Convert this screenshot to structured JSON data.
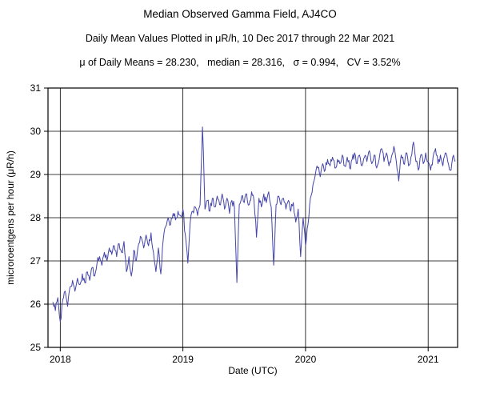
{
  "page": {
    "title": "Median Observed Gamma Field, AJ4CO",
    "subtitle": "Daily Mean Values Plotted in μR/h, 10 Dec 2017 through 22 Mar 2021",
    "stats_line": "μ of Daily Means = 28.230,   median = 28.316,   σ = 0.994,   CV = 3.52%"
  },
  "chart_data": {
    "type": "line",
    "title": "Median Observed Gamma Field, AJ4CO",
    "subtitle": "Daily Mean Values Plotted in μR/h, 10 Dec 2017 through 22 Mar 2021",
    "xlabel": "Date (UTC)",
    "ylabel": "microroentgens per hour (μR/h)",
    "xlim": [
      2017.9,
      2021.24
    ],
    "ylim": [
      25,
      31
    ],
    "x_ticks": [
      2018,
      2019,
      2020,
      2021
    ],
    "y_ticks": [
      25,
      26,
      27,
      28,
      29,
      30,
      31
    ],
    "grid": true,
    "legend": "none",
    "line_color": "#4444aa",
    "grid_color": "#000000",
    "frame_color": "#000000",
    "text_color": "#000000",
    "stats": {
      "mean_of_daily_means": 28.23,
      "median": 28.316,
      "sigma": 0.994,
      "cv_percent": 3.52
    },
    "noise_subdivision": {
      "midpoints_per_segment": 2,
      "amplitude": 0.1
    },
    "series": [
      {
        "name": "daily-mean-gamma",
        "points": [
          [
            2017.94,
            26.05
          ],
          [
            2017.96,
            25.85
          ],
          [
            2017.98,
            26.15
          ],
          [
            2018.0,
            25.6
          ],
          [
            2018.02,
            26.1
          ],
          [
            2018.04,
            26.3
          ],
          [
            2018.06,
            25.95
          ],
          [
            2018.08,
            26.4
          ],
          [
            2018.1,
            26.55
          ],
          [
            2018.12,
            26.3
          ],
          [
            2018.14,
            26.6
          ],
          [
            2018.16,
            26.45
          ],
          [
            2018.18,
            26.7
          ],
          [
            2018.2,
            26.5
          ],
          [
            2018.22,
            26.75
          ],
          [
            2018.24,
            26.55
          ],
          [
            2018.26,
            26.85
          ],
          [
            2018.28,
            26.65
          ],
          [
            2018.3,
            26.95
          ],
          [
            2018.32,
            27.1
          ],
          [
            2018.34,
            26.9
          ],
          [
            2018.36,
            27.2
          ],
          [
            2018.38,
            27.0
          ],
          [
            2018.4,
            27.3
          ],
          [
            2018.42,
            27.15
          ],
          [
            2018.44,
            27.35
          ],
          [
            2018.46,
            27.1
          ],
          [
            2018.48,
            27.4
          ],
          [
            2018.5,
            27.2
          ],
          [
            2018.52,
            27.45
          ],
          [
            2018.54,
            26.75
          ],
          [
            2018.56,
            27.1
          ],
          [
            2018.58,
            26.65
          ],
          [
            2018.6,
            27.25
          ],
          [
            2018.62,
            27.0
          ],
          [
            2018.64,
            27.4
          ],
          [
            2018.66,
            27.55
          ],
          [
            2018.68,
            27.3
          ],
          [
            2018.7,
            27.6
          ],
          [
            2018.72,
            27.35
          ],
          [
            2018.74,
            27.65
          ],
          [
            2018.76,
            27.2
          ],
          [
            2018.78,
            26.75
          ],
          [
            2018.8,
            27.3
          ],
          [
            2018.82,
            26.7
          ],
          [
            2018.84,
            27.5
          ],
          [
            2018.86,
            27.8
          ],
          [
            2018.88,
            28.0
          ],
          [
            2018.9,
            27.85
          ],
          [
            2018.92,
            28.1
          ],
          [
            2018.94,
            27.95
          ],
          [
            2018.96,
            28.15
          ],
          [
            2018.98,
            28.05
          ],
          [
            2019.0,
            28.2
          ],
          [
            2019.02,
            27.6
          ],
          [
            2019.04,
            26.95
          ],
          [
            2019.06,
            27.9
          ],
          [
            2019.08,
            28.15
          ],
          [
            2019.1,
            28.25
          ],
          [
            2019.12,
            28.05
          ],
          [
            2019.14,
            28.3
          ],
          [
            2019.16,
            30.1
          ],
          [
            2019.18,
            28.2
          ],
          [
            2019.2,
            28.4
          ],
          [
            2019.22,
            28.15
          ],
          [
            2019.24,
            28.45
          ],
          [
            2019.26,
            28.25
          ],
          [
            2019.28,
            28.5
          ],
          [
            2019.3,
            28.3
          ],
          [
            2019.32,
            28.55
          ],
          [
            2019.34,
            28.2
          ],
          [
            2019.36,
            28.45
          ],
          [
            2019.38,
            28.1
          ],
          [
            2019.4,
            28.4
          ],
          [
            2019.42,
            28.25
          ],
          [
            2019.44,
            26.5
          ],
          [
            2019.46,
            28.3
          ],
          [
            2019.48,
            28.5
          ],
          [
            2019.5,
            28.35
          ],
          [
            2019.52,
            28.55
          ],
          [
            2019.54,
            28.3
          ],
          [
            2019.56,
            28.6
          ],
          [
            2019.58,
            28.4
          ],
          [
            2019.6,
            27.55
          ],
          [
            2019.62,
            28.45
          ],
          [
            2019.64,
            28.25
          ],
          [
            2019.66,
            28.55
          ],
          [
            2019.68,
            28.35
          ],
          [
            2019.7,
            28.6
          ],
          [
            2019.72,
            28.25
          ],
          [
            2019.74,
            26.9
          ],
          [
            2019.76,
            28.3
          ],
          [
            2019.78,
            28.5
          ],
          [
            2019.8,
            28.3
          ],
          [
            2019.82,
            28.45
          ],
          [
            2019.84,
            28.2
          ],
          [
            2019.86,
            28.4
          ],
          [
            2019.88,
            28.15
          ],
          [
            2019.9,
            28.35
          ],
          [
            2019.92,
            27.9
          ],
          [
            2019.94,
            28.2
          ],
          [
            2019.96,
            27.1
          ],
          [
            2019.98,
            28.0
          ],
          [
            2020.0,
            27.35
          ],
          [
            2020.02,
            27.85
          ],
          [
            2020.04,
            28.45
          ],
          [
            2020.06,
            28.75
          ],
          [
            2020.08,
            29.0
          ],
          [
            2020.1,
            29.15
          ],
          [
            2020.12,
            28.95
          ],
          [
            2020.14,
            29.25
          ],
          [
            2020.16,
            29.1
          ],
          [
            2020.18,
            29.35
          ],
          [
            2020.2,
            29.2
          ],
          [
            2020.22,
            29.4
          ],
          [
            2020.24,
            29.15
          ],
          [
            2020.26,
            29.35
          ],
          [
            2020.28,
            29.25
          ],
          [
            2020.3,
            29.45
          ],
          [
            2020.32,
            29.2
          ],
          [
            2020.34,
            29.4
          ],
          [
            2020.36,
            29.15
          ],
          [
            2020.38,
            29.35
          ],
          [
            2020.4,
            29.5
          ],
          [
            2020.42,
            29.25
          ],
          [
            2020.44,
            29.45
          ],
          [
            2020.46,
            29.2
          ],
          [
            2020.48,
            29.4
          ],
          [
            2020.5,
            29.3
          ],
          [
            2020.52,
            29.55
          ],
          [
            2020.54,
            29.25
          ],
          [
            2020.56,
            29.45
          ],
          [
            2020.58,
            29.15
          ],
          [
            2020.6,
            29.35
          ],
          [
            2020.62,
            29.6
          ],
          [
            2020.64,
            29.3
          ],
          [
            2020.66,
            29.5
          ],
          [
            2020.68,
            29.2
          ],
          [
            2020.7,
            29.4
          ],
          [
            2020.72,
            29.65
          ],
          [
            2020.74,
            29.3
          ],
          [
            2020.76,
            28.85
          ],
          [
            2020.78,
            29.45
          ],
          [
            2020.8,
            29.25
          ],
          [
            2020.82,
            29.5
          ],
          [
            2020.84,
            29.2
          ],
          [
            2020.86,
            29.4
          ],
          [
            2020.88,
            29.75
          ],
          [
            2020.9,
            29.3
          ],
          [
            2020.92,
            29.1
          ],
          [
            2020.94,
            29.45
          ],
          [
            2020.96,
            29.25
          ],
          [
            2020.98,
            29.5
          ],
          [
            2021.0,
            29.3
          ],
          [
            2021.02,
            29.1
          ],
          [
            2021.04,
            29.4
          ],
          [
            2021.06,
            29.6
          ],
          [
            2021.08,
            29.25
          ],
          [
            2021.1,
            29.45
          ],
          [
            2021.12,
            29.2
          ],
          [
            2021.14,
            29.5
          ],
          [
            2021.16,
            29.3
          ],
          [
            2021.18,
            29.1
          ],
          [
            2021.2,
            29.4
          ],
          [
            2021.22,
            29.3
          ]
        ]
      }
    ]
  }
}
